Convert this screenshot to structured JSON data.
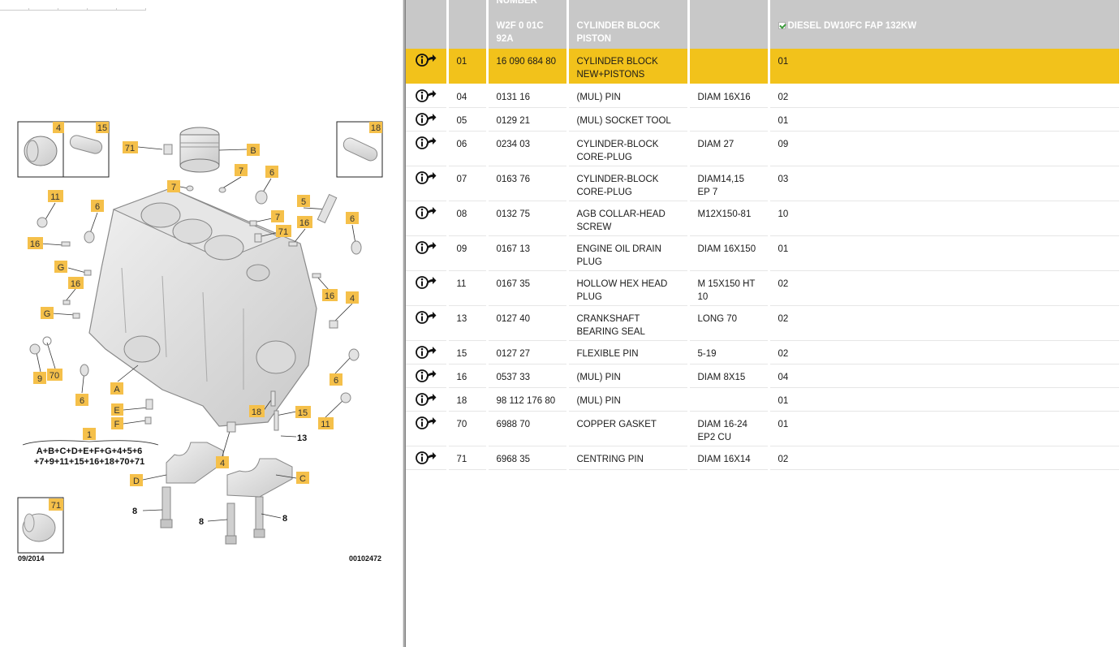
{
  "diagram": {
    "date": "09/2014",
    "ref": "00102472",
    "formula_line1": "A+B+C+D+E+F+G+4+5+6",
    "formula_line2": "+7+9+11+15+16+18+70+71",
    "callouts": {
      "c4a": "4",
      "c15": "15",
      "c18": "18",
      "c71a": "71",
      "cB": "B",
      "c7a": "7",
      "c7b": "7",
      "c6a": "6",
      "c11a": "11",
      "c6b": "6",
      "c5": "5",
      "c6c": "6",
      "c16a": "16",
      "c7c": "7",
      "c16b": "16",
      "c71b": "71",
      "cG1": "G",
      "c16c": "16",
      "c16d": "16",
      "cG2": "G",
      "c4b": "4",
      "c9": "9",
      "c70": "70",
      "cA": "A",
      "c6d": "6",
      "c6e": "6",
      "cE": "E",
      "cF": "F",
      "c18b": "18",
      "c15b": "15",
      "c11b": "11",
      "c1": "1",
      "c4c": "4",
      "cC": "C",
      "cD": "D",
      "c71c": "71"
    },
    "plain_labels": {
      "p13": "13",
      "p8a": "8",
      "p8b": "8",
      "p8c": "8"
    }
  },
  "table": {
    "header_top": [
      "",
      "",
      "NUMBER",
      "",
      "",
      ""
    ],
    "header": {
      "col_number": "W2F 0 01C 92A",
      "col_desc": "CYLINDER BLOCK PISTON",
      "col_extra": "",
      "col_model": "DIESEL DW10FC FAP 132KW"
    },
    "rows": [
      {
        "ref": "01",
        "part": "16 090 684 80",
        "desc": "CYLINDER BLOCK NEW+PISTONS",
        "spec": "",
        "qty": "01"
      },
      {
        "ref": "04",
        "part": "0131 16",
        "desc": "(MUL) PIN",
        "spec": "DIAM 16X16",
        "qty": "02"
      },
      {
        "ref": "05",
        "part": "0129 21",
        "desc": "(MUL) SOCKET TOOL",
        "spec": "",
        "qty": "01"
      },
      {
        "ref": "06",
        "part": "0234 03",
        "desc": "CYLINDER-BLOCK CORE-PLUG",
        "spec": "DIAM 27",
        "qty": "09"
      },
      {
        "ref": "07",
        "part": "0163 76",
        "desc": "CYLINDER-BLOCK CORE-PLUG",
        "spec": "DIAM14,15 EP 7",
        "qty": "03"
      },
      {
        "ref": "08",
        "part": "0132 75",
        "desc": "AGB COLLAR-HEAD SCREW",
        "spec": "M12X150-81",
        "qty": "10"
      },
      {
        "ref": "09",
        "part": "0167 13",
        "desc": "ENGINE OIL DRAIN PLUG",
        "spec": "DIAM 16X150",
        "qty": "01"
      },
      {
        "ref": "11",
        "part": "0167 35",
        "desc": "HOLLOW HEX HEAD PLUG",
        "spec": "M 15X150 HT 10",
        "qty": "02"
      },
      {
        "ref": "13",
        "part": "0127 40",
        "desc": "CRANKSHAFT BEARING SEAL",
        "spec": "LONG 70",
        "qty": "02"
      },
      {
        "ref": "15",
        "part": "0127 27",
        "desc": "FLEXIBLE PIN",
        "spec": "5-19",
        "qty": "02"
      },
      {
        "ref": "16",
        "part": "0537 33",
        "desc": "(MUL) PIN",
        "spec": "DIAM 8X15",
        "qty": "04"
      },
      {
        "ref": "18",
        "part": "98 112 176 80",
        "desc": "(MUL) PIN",
        "spec": "",
        "qty": "01"
      },
      {
        "ref": "70",
        "part": "6988 70",
        "desc": "COPPER GASKET",
        "spec": "DIAM 16-24 EP2 CU",
        "qty": "01"
      },
      {
        "ref": "71",
        "part": "6968 35",
        "desc": "CENTRING PIN",
        "spec": "DIAM 16X14",
        "qty": "02"
      }
    ]
  },
  "colors": {
    "header_bg": "#c8c8c8",
    "selected_row": "#f2c21b",
    "callout": "#f5c04a"
  },
  "icons": {
    "row_icon": "info-arrow-icon",
    "model_checkbox": "checkbox-checked-icon"
  }
}
